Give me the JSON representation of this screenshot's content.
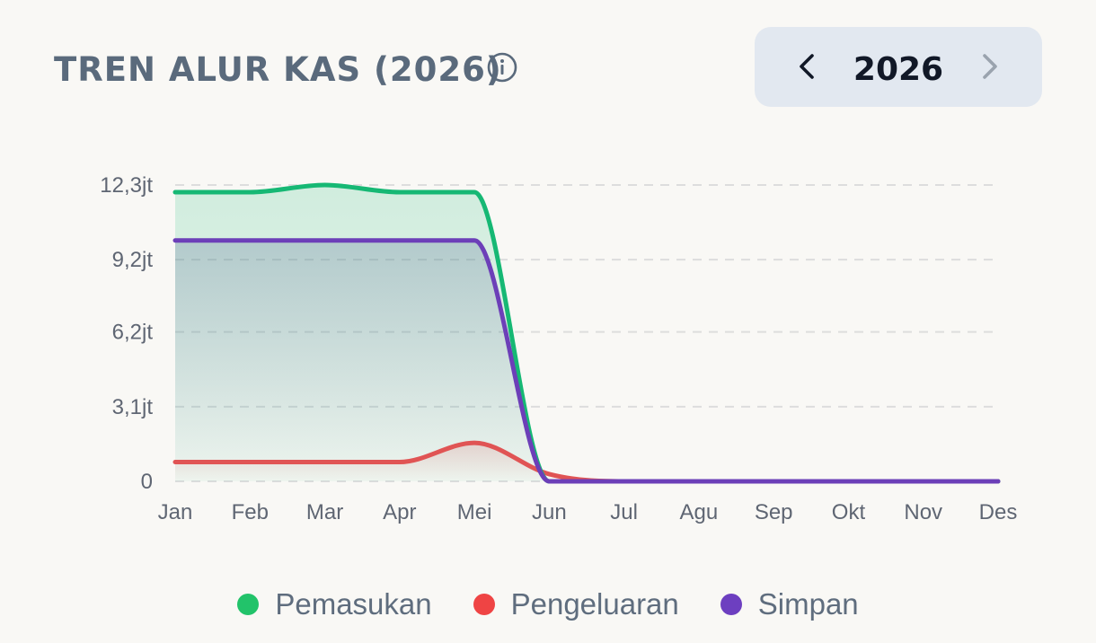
{
  "header": {
    "title": "TREN ALUR KAS (2026)",
    "info_icon": "info-circle-icon"
  },
  "year_picker": {
    "year": "2026",
    "prev_icon": "chevron-left-icon",
    "next_icon": "chevron-right-icon"
  },
  "colors": {
    "pemasukan": "#16b874",
    "pengeluaran": "#e05454",
    "simpan": "#6c3fb8",
    "grid": "#dddddd",
    "tick_text": "#5f6673"
  },
  "legend": [
    {
      "label": "Pemasukan",
      "color": "#22c36a"
    },
    {
      "label": "Pengeluaran",
      "color": "#ef4444"
    },
    {
      "label": "Simpan",
      "color": "#6d3fc0"
    }
  ],
  "chart_data": {
    "type": "area",
    "categories": [
      "Jan",
      "Feb",
      "Mar",
      "Apr",
      "Mei",
      "Jun",
      "Jul",
      "Agu",
      "Sep",
      "Okt",
      "Nov",
      "Des"
    ],
    "y_tick_labels": [
      "0",
      "3,1jt",
      "6,2jt",
      "9,2jt",
      "12,3jt"
    ],
    "y_tick_values": [
      0,
      3.1,
      6.2,
      9.2,
      12.3
    ],
    "ylim": [
      0,
      12.3
    ],
    "unit": "jt",
    "grid": true,
    "legend_position": "bottom",
    "series": [
      {
        "name": "Pemasukan",
        "values": [
          12.0,
          12.0,
          12.3,
          12.0,
          12.0,
          0,
          0,
          0,
          0,
          0,
          0,
          0
        ]
      },
      {
        "name": "Pengeluaran",
        "values": [
          0.8,
          0.8,
          0.8,
          0.8,
          1.6,
          0.3,
          0,
          0,
          0,
          0,
          0,
          0
        ]
      },
      {
        "name": "Simpan",
        "values": [
          10.0,
          10.0,
          10.0,
          10.0,
          10.0,
          0,
          0,
          0,
          0,
          0,
          0,
          0
        ]
      }
    ]
  }
}
